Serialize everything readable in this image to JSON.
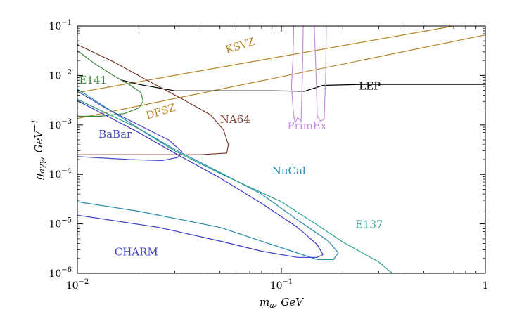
{
  "chart_data": {
    "type": "line",
    "title": "",
    "xlabel": "m_a, GeV",
    "ylabel": "g_aγγ, GeV^-1",
    "xscale": "log",
    "yscale": "log",
    "xlim": [
      0.01,
      1
    ],
    "ylim": [
      1e-06,
      0.1
    ],
    "grid": false,
    "legend": "none",
    "x_ticks": [
      {
        "value": 0.01,
        "base": "10",
        "exp": "−2"
      },
      {
        "value": 0.1,
        "base": "10",
        "exp": "−1"
      },
      {
        "value": 1,
        "base": "1",
        "exp": ""
      }
    ],
    "y_ticks": [
      {
        "value": 1e-06,
        "base": "10",
        "exp": "−6"
      },
      {
        "value": 1e-05,
        "base": "10",
        "exp": "−5"
      },
      {
        "value": 0.0001,
        "base": "10",
        "exp": "−4"
      },
      {
        "value": 0.001,
        "base": "10",
        "exp": "−3"
      },
      {
        "value": 0.01,
        "base": "10",
        "exp": "−2"
      },
      {
        "value": 0.1,
        "base": "10",
        "exp": "−1"
      }
    ],
    "series": [
      {
        "name": "KSVZ",
        "color": "#b8862b",
        "label_at": [
          0.054,
          0.028
        ],
        "label_angle": -17,
        "points": [
          [
            0.01,
            0.0045
          ],
          [
            0.7,
            0.1
          ]
        ]
      },
      {
        "name": "DFSZ",
        "color": "#b8862b",
        "label_at": [
          0.022,
          0.0013
        ],
        "label_angle": -17,
        "points": [
          [
            0.01,
            0.00135
          ],
          [
            1.0,
            0.066
          ]
        ]
      },
      {
        "name": "LEP",
        "color": "#000000",
        "label_at": [
          0.24,
          0.0052
        ],
        "label_angle": 0,
        "points": [
          [
            0.0162,
            0.0082
          ],
          [
            0.02,
            0.0066
          ],
          [
            0.03,
            0.0049
          ],
          [
            0.06,
            0.0049
          ],
          [
            0.09,
            0.0049
          ],
          [
            0.13,
            0.0048
          ],
          [
            0.16,
            0.0063
          ],
          [
            0.25,
            0.0066
          ],
          [
            1.0,
            0.0066
          ]
        ]
      },
      {
        "name": "PrimEx",
        "color": "#c58de0",
        "label_at": [
          0.107,
          0.00082
        ],
        "label_angle": 0,
        "points": [
          [
            0.115,
            0.1
          ],
          [
            0.114,
            0.02
          ],
          [
            0.112,
            0.006
          ],
          [
            0.115,
            0.0015
          ],
          [
            0.117,
            0.0011
          ],
          [
            0.12,
            0.0014
          ],
          [
            0.125,
            0.0012
          ],
          [
            0.127,
            0.012
          ],
          [
            0.128,
            0.1
          ],
          [
            null,
            null
          ],
          [
            0.145,
            0.1
          ],
          [
            0.148,
            0.01
          ],
          [
            0.15,
            0.0015
          ],
          [
            0.155,
            0.0012
          ],
          [
            0.162,
            0.0013
          ],
          [
            0.165,
            0.01
          ],
          [
            0.166,
            0.1
          ]
        ]
      },
      {
        "name": "E141",
        "color": "#3a8a3a",
        "label_at": [
          0.0102,
          0.0068
        ],
        "label_angle": 0,
        "points": [
          [
            0.01,
            0.032
          ],
          [
            0.012,
            0.018
          ],
          [
            0.015,
            0.01
          ],
          [
            0.018,
            0.0065
          ],
          [
            0.0205,
            0.0045
          ],
          [
            0.021,
            0.003
          ],
          [
            0.02,
            0.0022
          ],
          [
            0.017,
            0.0017
          ],
          [
            0.013,
            0.0015
          ],
          [
            0.01,
            0.0015
          ]
        ]
      },
      {
        "name": "NA64",
        "color": "#7a3a2a",
        "label_at": [
          0.05,
          0.0011
        ],
        "label_angle": 0,
        "points": [
          [
            0.01,
            0.042
          ],
          [
            0.015,
            0.019
          ],
          [
            0.022,
            0.008
          ],
          [
            0.032,
            0.0035
          ],
          [
            0.045,
            0.0016
          ],
          [
            0.052,
            0.0008
          ],
          [
            0.055,
            0.0004
          ],
          [
            0.054,
            0.00027
          ],
          [
            0.04,
            0.00025
          ],
          [
            0.025,
            0.00025
          ],
          [
            0.01,
            0.00025
          ]
        ]
      },
      {
        "name": "BaBar",
        "color": "#4a4ac8",
        "label_at": [
          0.0127,
          0.00055
        ],
        "label_angle": 0,
        "points": [
          [
            0.01,
            0.0048
          ],
          [
            0.014,
            0.0021
          ],
          [
            0.02,
            0.001
          ],
          [
            0.028,
            0.0005
          ],
          [
            0.0325,
            0.00029
          ],
          [
            0.031,
            0.00022
          ],
          [
            0.026,
            0.00019
          ],
          [
            0.018,
            0.0002
          ],
          [
            0.012,
            0.00022
          ],
          [
            0.01,
            0.00023
          ]
        ]
      },
      {
        "name": "NuCal",
        "color": "#2a8ab0",
        "label_at": [
          0.09,
          0.0001
        ],
        "label_angle": 0,
        "points": [
          [
            0.01,
            0.0053
          ],
          [
            0.015,
            0.0018
          ],
          [
            0.02,
            0.00085
          ],
          [
            0.03,
            0.00032
          ],
          [
            0.05,
            0.00011
          ],
          [
            0.08,
            4e-05
          ],
          [
            0.12,
            1.2e-05
          ],
          [
            0.17,
            4.5e-06
          ],
          [
            0.19,
            2.6e-06
          ],
          [
            0.18,
            1.9e-06
          ],
          [
            0.15,
            1.9e-06
          ],
          [
            0.1,
            3.3e-06
          ],
          [
            0.05,
            8.5e-06
          ],
          [
            0.02,
            1.8e-05
          ],
          [
            0.01,
            2.8e-05
          ]
        ]
      },
      {
        "name": "E137",
        "color": "#2aa090",
        "label_at": [
          0.23,
          8.2e-06
        ],
        "label_angle": 0,
        "points": [
          [
            0.01,
            0.0033
          ],
          [
            0.02,
            0.00084
          ],
          [
            0.03,
            0.0003
          ],
          [
            0.05,
            0.000105
          ],
          [
            0.1,
            2.8e-05
          ],
          [
            0.15,
            9.5e-06
          ],
          [
            0.2,
            4.3e-06
          ],
          [
            0.3,
            1.7e-06
          ],
          [
            0.35,
            1e-06
          ]
        ]
      },
      {
        "name": "CHARM",
        "color": "#3a3ac8",
        "label_at": [
          0.0152,
          2.3e-06
        ],
        "label_angle": 0,
        "points": [
          [
            0.01,
            0.0031
          ],
          [
            0.015,
            0.0013
          ],
          [
            0.02,
            0.0007
          ],
          [
            0.03,
            0.00027
          ],
          [
            0.05,
            8.5e-05
          ],
          [
            0.08,
            2.6e-05
          ],
          [
            0.12,
            8.5e-06
          ],
          [
            0.15,
            3.8e-06
          ],
          [
            0.16,
            2.4e-06
          ],
          [
            0.15,
            2.1e-06
          ],
          [
            0.12,
            2.1e-06
          ],
          [
            0.08,
            2.8e-06
          ],
          [
            0.05,
            4.5e-06
          ],
          [
            0.025,
            8.5e-06
          ],
          [
            0.01,
            1.5e-05
          ]
        ]
      }
    ]
  }
}
